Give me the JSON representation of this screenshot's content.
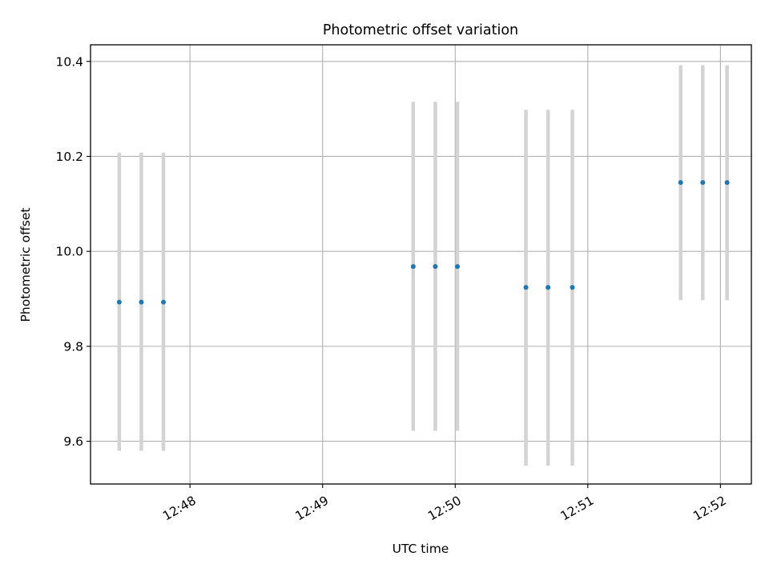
{
  "chart_data": {
    "type": "scatter",
    "title": "Photometric offset variation",
    "xlabel": "UTC time",
    "ylabel": "Photometric offset",
    "x_type": "time",
    "xlim": [
      "12:47:15",
      "12:52:14"
    ],
    "ylim": [
      9.51,
      10.435
    ],
    "x_ticks": [
      "12:48",
      "12:49",
      "12:50",
      "12:51",
      "12:52"
    ],
    "y_ticks": [
      "9.6",
      "9.8",
      "10.0",
      "10.2",
      "10.4"
    ],
    "grid": true,
    "colors": {
      "points": "#1f77b4",
      "errorbars": "#d3d3d3",
      "grid": "#b0b0b0"
    },
    "series": [
      {
        "x": [
          "12:47:28",
          "12:47:38",
          "12:47:48",
          "12:49:41",
          "12:49:51",
          "12:50:01",
          "12:50:32",
          "12:50:42",
          "12:50:53",
          "12:51:42",
          "12:51:52",
          "12:52:03"
        ],
        "y": [
          9.893,
          9.893,
          9.893,
          9.968,
          9.968,
          9.968,
          9.924,
          9.924,
          9.924,
          10.145,
          10.145,
          10.145
        ],
        "yerr_low": [
          9.58,
          9.58,
          9.58,
          9.622,
          9.622,
          9.622,
          9.549,
          9.549,
          9.549,
          9.897,
          9.897,
          9.897
        ],
        "yerr_high": [
          10.208,
          10.208,
          10.208,
          10.315,
          10.315,
          10.315,
          10.298,
          10.298,
          10.298,
          10.392,
          10.392,
          10.392
        ]
      }
    ]
  }
}
